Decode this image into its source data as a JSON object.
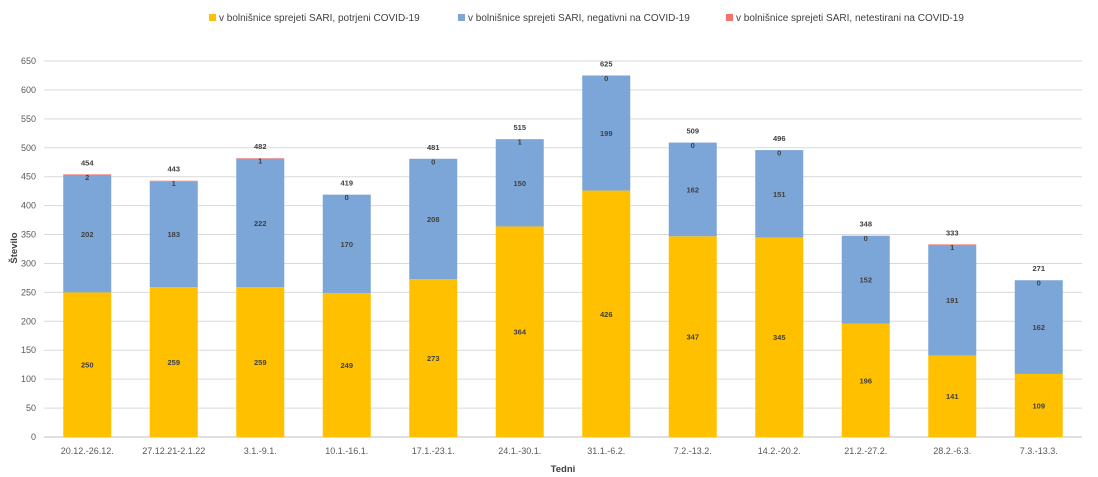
{
  "chart_data": {
    "type": "bar",
    "stacked": true,
    "title": "",
    "xlabel": "Tedni",
    "ylabel": "Število",
    "ylim": [
      0,
      650
    ],
    "yticks": [
      0,
      50,
      100,
      150,
      200,
      250,
      300,
      350,
      400,
      450,
      500,
      550,
      600,
      650
    ],
    "grid": true,
    "legend_position": "top",
    "categories": [
      "20.12.-26.12.",
      "27.12.21-2.1.22",
      "3.1.-9.1.",
      "10.1.-16.1.",
      "17.1.-23.1.",
      "24.1.-30.1.",
      "31.1.-6.2.",
      "7.2.-13.2.",
      "14.2.-20.2.",
      "21.2.-27.2.",
      "28.2.-6.3.",
      "7.3.-13.3."
    ],
    "series": [
      {
        "name": "v bolnišnice sprejeti SARI, potrjeni COVID-19",
        "color": "#FFC000",
        "values": [
          250,
          259,
          259,
          249,
          273,
          364,
          426,
          347,
          345,
          196,
          141,
          109
        ]
      },
      {
        "name": "v bolnišnice sprejeti SARI, negativni na COVID-19",
        "color": "#7DA6D8",
        "values": [
          202,
          183,
          222,
          170,
          208,
          150,
          199,
          162,
          151,
          152,
          191,
          162
        ]
      },
      {
        "name": "v bolnišnice sprejeti SARI, netestirani na COVID-19",
        "color": "#F4726A",
        "values": [
          2,
          1,
          1,
          0,
          0,
          1,
          0,
          0,
          0,
          0,
          1,
          0
        ]
      }
    ],
    "totals": [
      454,
      443,
      482,
      419,
      481,
      515,
      625,
      509,
      496,
      348,
      333,
      271
    ]
  }
}
